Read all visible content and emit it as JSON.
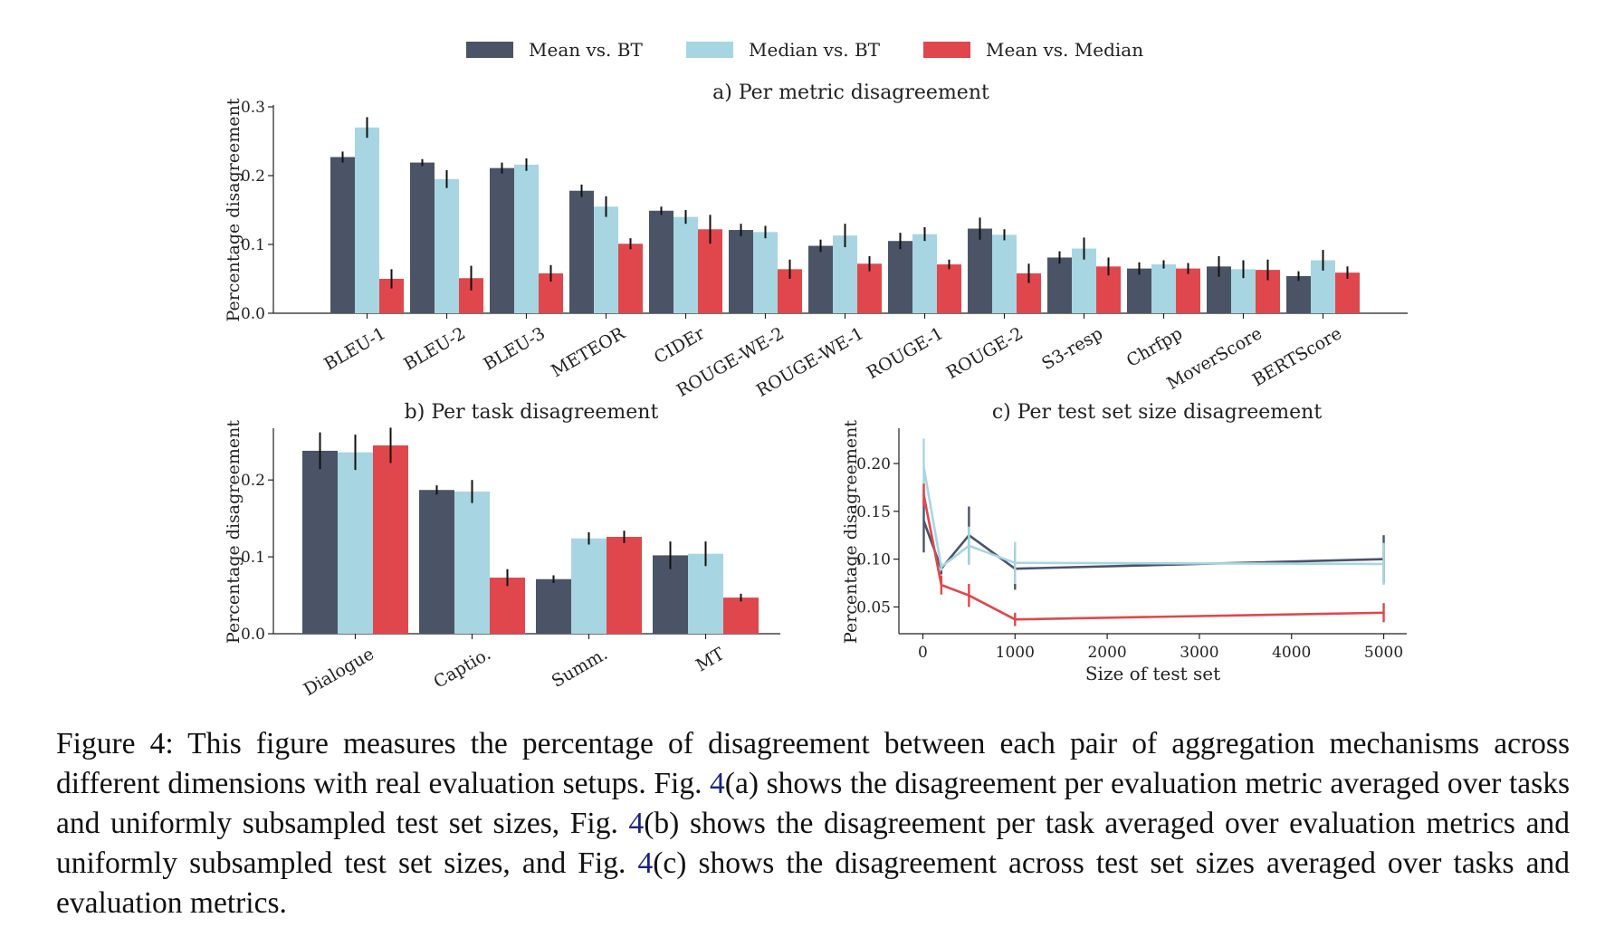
{
  "legend": [
    {
      "name": "Mean vs. BT",
      "color": "#4a5466"
    },
    {
      "name": "Median vs. BT",
      "color": "#a8d5e2"
    },
    {
      "name": "Mean vs. Median",
      "color": "#e0474c"
    }
  ],
  "chart_data": [
    {
      "id": "a",
      "type": "bar",
      "title": "a) Per metric disagreement",
      "xlabel": "",
      "ylabel": "Percentage disagreement",
      "ylim": [
        0,
        0.3
      ],
      "yticks": [
        "0.0",
        "0.1",
        "0.2",
        "0.3"
      ],
      "grid": false,
      "categories": [
        "BLEU-1",
        "BLEU-2",
        "BLEU-3",
        "METEOR",
        "CIDEr",
        "ROUGE-WE-2",
        "ROUGE-WE-1",
        "ROUGE-1",
        "ROUGE-2",
        "S3-resp",
        "Chrfpp",
        "MoverScore",
        "BERTScore"
      ],
      "series": [
        {
          "name": "Mean vs. BT",
          "values": [
            0.227,
            0.219,
            0.211,
            0.178,
            0.149,
            0.121,
            0.098,
            0.105,
            0.123,
            0.081,
            0.065,
            0.068,
            0.054
          ],
          "errors": [
            0.008,
            0.005,
            0.008,
            0.009,
            0.006,
            0.009,
            0.009,
            0.012,
            0.016,
            0.009,
            0.009,
            0.015,
            0.007
          ]
        },
        {
          "name": "Median vs. BT",
          "values": [
            0.27,
            0.195,
            0.216,
            0.155,
            0.14,
            0.118,
            0.113,
            0.115,
            0.114,
            0.094,
            0.071,
            0.064,
            0.077
          ],
          "errors": [
            0.015,
            0.013,
            0.009,
            0.015,
            0.01,
            0.009,
            0.017,
            0.01,
            0.008,
            0.016,
            0.006,
            0.013,
            0.015
          ]
        },
        {
          "name": "Mean vs. Median",
          "values": [
            0.05,
            0.051,
            0.058,
            0.101,
            0.122,
            0.064,
            0.072,
            0.071,
            0.058,
            0.068,
            0.065,
            0.063,
            0.059
          ],
          "errors": [
            0.014,
            0.018,
            0.012,
            0.008,
            0.021,
            0.014,
            0.011,
            0.007,
            0.014,
            0.013,
            0.008,
            0.015,
            0.009
          ]
        }
      ]
    },
    {
      "id": "b",
      "type": "bar",
      "title": "b) Per task disagreement",
      "xlabel": "",
      "ylabel": "Percentage disagreement",
      "ylim": [
        0,
        0.265
      ],
      "yticks": [
        "0.0",
        "0.1",
        "0.2"
      ],
      "grid": false,
      "categories": [
        "Dialogue",
        "Captio.",
        "Summ.",
        "MT"
      ],
      "series": [
        {
          "name": "Mean vs. BT",
          "values": [
            0.238,
            0.187,
            0.071,
            0.102
          ],
          "errors": [
            0.024,
            0.006,
            0.005,
            0.018
          ]
        },
        {
          "name": "Median vs. BT",
          "values": [
            0.236,
            0.185,
            0.124,
            0.104
          ],
          "errors": [
            0.023,
            0.015,
            0.008,
            0.016
          ]
        },
        {
          "name": "Mean vs. Median",
          "values": [
            0.245,
            0.073,
            0.126,
            0.047
          ],
          "errors": [
            0.023,
            0.011,
            0.008,
            0.005
          ]
        }
      ]
    },
    {
      "id": "c",
      "type": "line",
      "title": "c) Per test set size disagreement",
      "xlabel": "Size of test set",
      "ylabel": "Percentage disagreement",
      "xlim": [
        -260,
        5250
      ],
      "ylim": [
        0.022,
        0.235
      ],
      "xticks": [
        "0",
        "1000",
        "2000",
        "3000",
        "4000",
        "5000"
      ],
      "yticks": [
        "0.05",
        "0.10",
        "0.15",
        "0.20"
      ],
      "grid": false,
      "x": [
        10,
        200,
        500,
        1000,
        5000
      ],
      "series": [
        {
          "name": "Mean vs. BT",
          "values": [
            0.14,
            0.09,
            0.125,
            0.09,
            0.1
          ],
          "errors": [
            0.033,
            0.006,
            0.03,
            0.022,
            0.025
          ]
        },
        {
          "name": "Median vs. BT",
          "values": [
            0.196,
            0.092,
            0.114,
            0.096,
            0.095
          ],
          "errors": [
            0.03,
            0.004,
            0.02,
            0.022,
            0.022
          ]
        },
        {
          "name": "Mean vs. Median",
          "values": [
            0.167,
            0.073,
            0.062,
            0.037,
            0.044
          ],
          "errors": [
            0.012,
            0.01,
            0.012,
            0.007,
            0.01
          ]
        }
      ]
    }
  ],
  "caption": {
    "prefix": "Figure 4: This figure measures the percentage of disagreement between each pair of aggregation mechanisms across different dimensions with real evaluation setups. Fig. ",
    "ref1": "4",
    "mid1": "(a) shows the disagreement per evaluation metric averaged over tasks and uniformly subsampled test set sizes, Fig. ",
    "ref2": "4",
    "mid2": "(b) shows the disagreement per task averaged over evaluation metrics and uniformly subsampled test set sizes, and Fig. ",
    "ref3": "4",
    "suffix": "(c) shows the disagreement across test set sizes averaged over tasks and evaluation metrics."
  }
}
